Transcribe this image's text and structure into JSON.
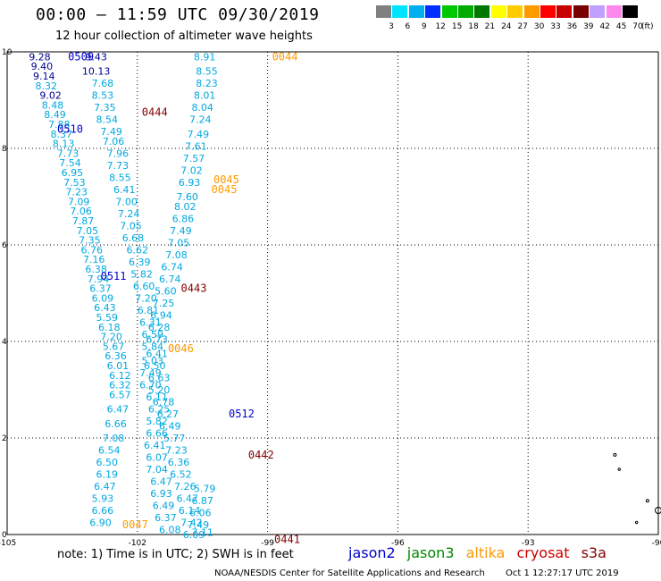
{
  "header": {
    "title": "00:00 – 11:59 UTC 09/30/2019",
    "subtitle": "12 hour collection of altimeter wave heights"
  },
  "color_scale": {
    "labels": [
      "3",
      "6",
      "9",
      "12",
      "15",
      "18",
      "21",
      "24",
      "27",
      "30",
      "33",
      "36",
      "39",
      "42",
      "45",
      "70"
    ],
    "colors": [
      "#808080",
      "#00e5ff",
      "#00b0f0",
      "#0030ff",
      "#00c800",
      "#00aa00",
      "#007800",
      "#ffff00",
      "#ffcc00",
      "#ff9900",
      "#ff0000",
      "#c80000",
      "#780000",
      "#c0a0ff",
      "#ff88ee",
      "#000000"
    ],
    "unit": "(ft)"
  },
  "map": {
    "lon_ticks": [
      {
        "lon": -105,
        "label": "-105"
      },
      {
        "lon": -102,
        "label": "-102"
      },
      {
        "lon": -99,
        "label": "-99"
      },
      {
        "lon": -96,
        "label": "-96"
      },
      {
        "lon": -93,
        "label": "-93"
      },
      {
        "lon": -90,
        "label": "-90"
      }
    ],
    "lat_ticks": [
      {
        "lat": 0,
        "label": "0"
      },
      {
        "lat": 2,
        "label": "2"
      },
      {
        "lat": 4,
        "label": "4"
      },
      {
        "lat": 6,
        "label": "6"
      },
      {
        "lat": 8,
        "label": "8"
      },
      {
        "lat": 10,
        "label": "10"
      }
    ],
    "track_colors": {
      "jason2": "#0000cc",
      "cryosat": "#800000",
      "altika": "#ff9900",
      "obs": "#00a8e0",
      "obs_dark": "#000090"
    },
    "time_labels": [
      {
        "text": "0509",
        "lon": -103.3,
        "lat": 9.9,
        "sat": "jason2"
      },
      {
        "text": "0510",
        "lon": -103.55,
        "lat": 8.4,
        "sat": "jason2"
      },
      {
        "text": "0511",
        "lon": -102.55,
        "lat": 5.35,
        "sat": "jason2"
      },
      {
        "text": "0512",
        "lon": -99.6,
        "lat": 2.5,
        "sat": "jason2"
      },
      {
        "text": "0444",
        "lon": -101.6,
        "lat": 8.75,
        "sat": "cryosat"
      },
      {
        "text": "0443",
        "lon": -100.7,
        "lat": 5.1,
        "sat": "cryosat"
      },
      {
        "text": "0442",
        "lon": -99.15,
        "lat": 1.65,
        "sat": "cryosat"
      },
      {
        "text": "0441",
        "lon": -98.55,
        "lat": -0.1,
        "sat": "cryosat"
      },
      {
        "text": "0044",
        "lon": -98.6,
        "lat": 9.9,
        "sat": "altika"
      },
      {
        "text": "0045",
        "lon": -99.95,
        "lat": 7.35,
        "sat": "altika"
      },
      {
        "text": "0045",
        "lon": -100.0,
        "lat": 7.15,
        "sat": "altika"
      },
      {
        "text": "0046",
        "lon": -101.0,
        "lat": 3.85,
        "sat": "altika"
      },
      {
        "text": "0047",
        "lon": -102.05,
        "lat": 0.2,
        "sat": "altika"
      }
    ],
    "track_a": [
      {
        "lon": -104.25,
        "lat": 9.9,
        "v": "9.28",
        "c": "obs_dark"
      },
      {
        "lon": -104.2,
        "lat": 9.7,
        "v": "9.40",
        "c": "obs_dark"
      },
      {
        "lon": -104.15,
        "lat": 9.5,
        "v": "9.14",
        "c": "obs_dark"
      },
      {
        "lon": -104.1,
        "lat": 9.3,
        "v": "8.32",
        "c": "obs"
      },
      {
        "lon": -104.0,
        "lat": 9.1,
        "v": "9.02",
        "c": "obs_dark"
      },
      {
        "lon": -103.95,
        "lat": 8.9,
        "v": "8.48",
        "c": "obs"
      },
      {
        "lon": -103.9,
        "lat": 8.7,
        "v": "8.49",
        "c": "obs"
      },
      {
        "lon": -103.8,
        "lat": 8.5,
        "v": "7.88",
        "c": "obs"
      },
      {
        "lon": -103.75,
        "lat": 8.3,
        "v": "8.37",
        "c": "obs"
      },
      {
        "lon": -103.7,
        "lat": 8.1,
        "v": "8.13",
        "c": "obs"
      },
      {
        "lon": -103.6,
        "lat": 7.9,
        "v": "7.73",
        "c": "obs"
      },
      {
        "lon": -103.55,
        "lat": 7.7,
        "v": "7.54",
        "c": "obs"
      },
      {
        "lon": -103.5,
        "lat": 7.5,
        "v": "6.95",
        "c": "obs"
      },
      {
        "lon": -103.45,
        "lat": 7.3,
        "v": "7.53",
        "c": "obs"
      },
      {
        "lon": -103.4,
        "lat": 7.1,
        "v": "7.23",
        "c": "obs"
      },
      {
        "lon": -103.35,
        "lat": 6.9,
        "v": "7.09",
        "c": "obs"
      },
      {
        "lon": -103.3,
        "lat": 6.7,
        "v": "7.06",
        "c": "obs"
      },
      {
        "lon": -103.25,
        "lat": 6.5,
        "v": "7.87",
        "c": "obs"
      },
      {
        "lon": -103.15,
        "lat": 6.3,
        "v": "7.05",
        "c": "obs"
      },
      {
        "lon": -103.1,
        "lat": 6.1,
        "v": "7.35",
        "c": "obs"
      },
      {
        "lon": -103.05,
        "lat": 5.9,
        "v": "6.76",
        "c": "obs"
      },
      {
        "lon": -103.0,
        "lat": 5.7,
        "v": "7.16",
        "c": "obs"
      },
      {
        "lon": -102.95,
        "lat": 5.5,
        "v": "6.38",
        "c": "obs"
      },
      {
        "lon": -102.9,
        "lat": 5.3,
        "v": "7.94",
        "c": "obs"
      },
      {
        "lon": -102.85,
        "lat": 5.1,
        "v": "6.37",
        "c": "obs"
      },
      {
        "lon": -102.8,
        "lat": 4.9,
        "v": "6.09",
        "c": "obs"
      },
      {
        "lon": -102.75,
        "lat": 4.7,
        "v": "6.43",
        "c": "obs"
      },
      {
        "lon": -102.7,
        "lat": 4.5,
        "v": "5.59",
        "c": "obs"
      },
      {
        "lon": -102.65,
        "lat": 4.3,
        "v": "6.18",
        "c": "obs"
      },
      {
        "lon": -102.6,
        "lat": 4.1,
        "v": "7.20",
        "c": "obs"
      },
      {
        "lon": -102.55,
        "lat": 3.9,
        "v": "5.67",
        "c": "obs"
      },
      {
        "lon": -102.5,
        "lat": 3.7,
        "v": "6.36",
        "c": "obs"
      },
      {
        "lon": -102.45,
        "lat": 3.5,
        "v": "6.01",
        "c": "obs"
      },
      {
        "lon": -102.4,
        "lat": 3.3,
        "v": "6.12",
        "c": "obs"
      },
      {
        "lon": -102.4,
        "lat": 3.1,
        "v": "6.32",
        "c": "obs"
      },
      {
        "lon": -102.4,
        "lat": 2.9,
        "v": "6.57",
        "c": "obs"
      },
      {
        "lon": -102.45,
        "lat": 2.6,
        "v": "6.47",
        "c": "obs"
      },
      {
        "lon": -102.5,
        "lat": 2.3,
        "v": "6.66",
        "c": "obs"
      },
      {
        "lon": -102.55,
        "lat": 2.0,
        "v": "7.08",
        "c": "obs"
      },
      {
        "lon": -102.65,
        "lat": 1.75,
        "v": "6.54",
        "c": "obs"
      },
      {
        "lon": -102.7,
        "lat": 1.5,
        "v": "6.50",
        "c": "obs"
      },
      {
        "lon": -102.7,
        "lat": 1.25,
        "v": "6.19",
        "c": "obs"
      },
      {
        "lon": -102.75,
        "lat": 1.0,
        "v": "6.47",
        "c": "obs"
      },
      {
        "lon": -102.8,
        "lat": 0.75,
        "v": "5.93",
        "c": "obs"
      },
      {
        "lon": -102.8,
        "lat": 0.5,
        "v": "6.66",
        "c": "obs"
      },
      {
        "lon": -102.85,
        "lat": 0.25,
        "v": "6.90",
        "c": "obs"
      }
    ],
    "track_b": [
      {
        "lon": -102.95,
        "lat": 9.9,
        "v": "9.43",
        "c": "obs_dark"
      },
      {
        "lon": -102.95,
        "lat": 9.6,
        "v": "10.13",
        "c": "obs_dark"
      },
      {
        "lon": -102.8,
        "lat": 9.35,
        "v": "7.68",
        "c": "obs"
      },
      {
        "lon": -102.8,
        "lat": 9.1,
        "v": "8.53",
        "c": "obs"
      },
      {
        "lon": -102.75,
        "lat": 8.85,
        "v": "7.35",
        "c": "obs"
      },
      {
        "lon": -102.7,
        "lat": 8.6,
        "v": "8.54",
        "c": "obs"
      },
      {
        "lon": -102.6,
        "lat": 8.35,
        "v": "7.49",
        "c": "obs"
      },
      {
        "lon": -102.55,
        "lat": 8.15,
        "v": "7.06",
        "c": "obs"
      },
      {
        "lon": -102.45,
        "lat": 7.9,
        "v": "7.96",
        "c": "obs"
      },
      {
        "lon": -102.45,
        "lat": 7.65,
        "v": "7.73",
        "c": "obs"
      },
      {
        "lon": -102.4,
        "lat": 7.4,
        "v": "8.55",
        "c": "obs"
      },
      {
        "lon": -102.3,
        "lat": 7.15,
        "v": "6.41",
        "c": "obs"
      },
      {
        "lon": -102.25,
        "lat": 6.9,
        "v": "7.00",
        "c": "obs"
      },
      {
        "lon": -102.2,
        "lat": 6.65,
        "v": "7.24",
        "c": "obs"
      },
      {
        "lon": -102.15,
        "lat": 6.4,
        "v": "7.05",
        "c": "obs"
      },
      {
        "lon": -102.1,
        "lat": 6.15,
        "v": "6.68",
        "c": "obs"
      },
      {
        "lon": -102.0,
        "lat": 5.9,
        "v": "6.62",
        "c": "obs"
      },
      {
        "lon": -101.95,
        "lat": 5.65,
        "v": "6.39",
        "c": "obs"
      },
      {
        "lon": -101.9,
        "lat": 5.4,
        "v": "5.82",
        "c": "obs"
      },
      {
        "lon": -101.85,
        "lat": 5.15,
        "v": "6.60",
        "c": "obs"
      },
      {
        "lon": -101.8,
        "lat": 4.9,
        "v": "7.20",
        "c": "obs"
      },
      {
        "lon": -101.75,
        "lat": 4.65,
        "v": "6.81",
        "c": "obs"
      },
      {
        "lon": -101.7,
        "lat": 4.4,
        "v": "6.31",
        "c": "obs"
      },
      {
        "lon": -101.65,
        "lat": 4.15,
        "v": "6.59",
        "c": "obs"
      },
      {
        "lon": -101.65,
        "lat": 3.9,
        "v": "5.84",
        "c": "obs"
      },
      {
        "lon": -101.65,
        "lat": 3.6,
        "v": "5.03",
        "c": "obs"
      },
      {
        "lon": -101.7,
        "lat": 3.35,
        "v": "7.49",
        "c": "obs"
      },
      {
        "lon": -101.7,
        "lat": 3.1,
        "v": "6.70",
        "c": "obs"
      },
      {
        "lon": -101.55,
        "lat": 2.85,
        "v": "6.11",
        "c": "obs"
      },
      {
        "lon": -101.5,
        "lat": 2.6,
        "v": "6.25",
        "c": "obs"
      },
      {
        "lon": -101.55,
        "lat": 2.35,
        "v": "5.82",
        "c": "obs"
      },
      {
        "lon": -101.55,
        "lat": 2.1,
        "v": "6.66",
        "c": "obs"
      },
      {
        "lon": -101.6,
        "lat": 1.85,
        "v": "6.41",
        "c": "obs"
      },
      {
        "lon": -101.55,
        "lat": 1.6,
        "v": "6.07",
        "c": "obs"
      },
      {
        "lon": -101.55,
        "lat": 1.35,
        "v": "7.04",
        "c": "obs"
      },
      {
        "lon": -101.45,
        "lat": 1.1,
        "v": "6.47",
        "c": "obs"
      },
      {
        "lon": -101.45,
        "lat": 0.85,
        "v": "6.93",
        "c": "obs"
      },
      {
        "lon": -101.4,
        "lat": 0.6,
        "v": "6.49",
        "c": "obs"
      },
      {
        "lon": -101.35,
        "lat": 0.35,
        "v": "6.37",
        "c": "obs"
      },
      {
        "lon": -101.25,
        "lat": 0.1,
        "v": "6.08",
        "c": "obs"
      }
    ],
    "track_c": [
      {
        "lon": -100.45,
        "lat": 9.9,
        "v": "8.91",
        "c": "obs"
      },
      {
        "lon": -100.4,
        "lat": 9.6,
        "v": "8.55",
        "c": "obs"
      },
      {
        "lon": -100.4,
        "lat": 9.35,
        "v": "8.23",
        "c": "obs"
      },
      {
        "lon": -100.45,
        "lat": 9.1,
        "v": "8.01",
        "c": "obs"
      },
      {
        "lon": -100.5,
        "lat": 8.85,
        "v": "8.04",
        "c": "obs"
      },
      {
        "lon": -100.55,
        "lat": 8.6,
        "v": "7.24",
        "c": "obs"
      },
      {
        "lon": -100.6,
        "lat": 8.3,
        "v": "7.49",
        "c": "obs"
      },
      {
        "lon": -100.65,
        "lat": 8.05,
        "v": "7.61",
        "c": "obs"
      },
      {
        "lon": -100.7,
        "lat": 7.8,
        "v": "7.57",
        "c": "obs"
      },
      {
        "lon": -100.75,
        "lat": 7.55,
        "v": "7.02",
        "c": "obs"
      },
      {
        "lon": -100.8,
        "lat": 7.3,
        "v": "6.93",
        "c": "obs"
      },
      {
        "lon": -100.85,
        "lat": 7.0,
        "v": "7.60",
        "c": "obs"
      },
      {
        "lon": -100.9,
        "lat": 6.8,
        "v": "8.02",
        "c": "obs"
      },
      {
        "lon": -100.95,
        "lat": 6.55,
        "v": "6.86",
        "c": "obs"
      },
      {
        "lon": -101.0,
        "lat": 6.3,
        "v": "7.49",
        "c": "obs"
      },
      {
        "lon": -101.05,
        "lat": 6.05,
        "v": "7.05",
        "c": "obs"
      },
      {
        "lon": -101.1,
        "lat": 5.8,
        "v": "7.08",
        "c": "obs"
      },
      {
        "lon": -101.2,
        "lat": 5.55,
        "v": "6.74",
        "c": "obs"
      },
      {
        "lon": -101.25,
        "lat": 5.3,
        "v": "6.74",
        "c": "obs"
      },
      {
        "lon": -101.35,
        "lat": 5.05,
        "v": "5.60",
        "c": "obs"
      },
      {
        "lon": -101.4,
        "lat": 4.8,
        "v": "7.25",
        "c": "obs"
      },
      {
        "lon": -101.45,
        "lat": 4.55,
        "v": "6.94",
        "c": "obs"
      },
      {
        "lon": -101.5,
        "lat": 4.3,
        "v": "6.28",
        "c": "obs"
      },
      {
        "lon": -101.55,
        "lat": 4.05,
        "v": "6.73",
        "c": "obs"
      },
      {
        "lon": -101.55,
        "lat": 3.75,
        "v": "6.41",
        "c": "obs"
      },
      {
        "lon": -101.6,
        "lat": 3.5,
        "v": "6.50",
        "c": "obs"
      },
      {
        "lon": -101.5,
        "lat": 3.25,
        "v": "6.63",
        "c": "obs"
      },
      {
        "lon": -101.5,
        "lat": 3.0,
        "v": "5.20",
        "c": "obs"
      },
      {
        "lon": -101.4,
        "lat": 2.75,
        "v": "6.78",
        "c": "obs"
      },
      {
        "lon": -101.3,
        "lat": 2.5,
        "v": "6.27",
        "c": "obs"
      },
      {
        "lon": -101.25,
        "lat": 2.25,
        "v": "6.49",
        "c": "obs"
      },
      {
        "lon": -101.15,
        "lat": 2.0,
        "v": "5.77",
        "c": "obs"
      },
      {
        "lon": -101.1,
        "lat": 1.75,
        "v": "7.23",
        "c": "obs"
      },
      {
        "lon": -101.05,
        "lat": 1.5,
        "v": "6.36",
        "c": "obs"
      },
      {
        "lon": -101.0,
        "lat": 1.25,
        "v": "6.52",
        "c": "obs"
      },
      {
        "lon": -100.9,
        "lat": 1.0,
        "v": "7.26",
        "c": "obs"
      },
      {
        "lon": -100.85,
        "lat": 0.75,
        "v": "6.47",
        "c": "obs"
      },
      {
        "lon": -100.8,
        "lat": 0.5,
        "v": "6.14",
        "c": "obs"
      },
      {
        "lon": -100.75,
        "lat": 0.25,
        "v": "7.42",
        "c": "obs"
      },
      {
        "lon": -100.7,
        "lat": 0.0,
        "v": "6.09",
        "c": "obs"
      }
    ],
    "track_d": [
      {
        "lon": -100.45,
        "lat": 0.95,
        "v": "5.79",
        "c": "obs"
      },
      {
        "lon": -100.5,
        "lat": 0.7,
        "v": "6.87",
        "c": "obs"
      },
      {
        "lon": -100.55,
        "lat": 0.45,
        "v": "6.06",
        "c": "obs"
      },
      {
        "lon": -100.6,
        "lat": 0.2,
        "v": "7.49",
        "c": "obs"
      },
      {
        "lon": -100.5,
        "lat": 0.05,
        "v": "7.11",
        "c": "obs"
      }
    ],
    "islands": [
      {
        "lon": -91.0,
        "lat": 1.65,
        "r": 1.5
      },
      {
        "lon": -90.9,
        "lat": 1.35,
        "r": 1.2
      },
      {
        "lon": -90.0,
        "lat": 0.5,
        "r": 3.5
      },
      {
        "lon": -90.25,
        "lat": 0.7,
        "r": 1.5
      },
      {
        "lon": -90.5,
        "lat": 0.25,
        "r": 1.2
      }
    ]
  },
  "note": "note:  1) Time is in UTC;  2) SWH is in feet",
  "legend": {
    "jason2": "jason2",
    "jason3": "jason3",
    "altika": "altika",
    "cryosat": "cryosat",
    "s3a": "s3a",
    "colors": {
      "jason2": "#0000cc",
      "jason3": "#008800",
      "altika": "#ff9900",
      "cryosat": "#cc0000",
      "s3a": "#800000"
    }
  },
  "footer": {
    "credit": "NOAA/NESDIS Center for Satellite Applications and Research",
    "timestamp": "Oct  1 12:27:17 UTC 2019"
  }
}
